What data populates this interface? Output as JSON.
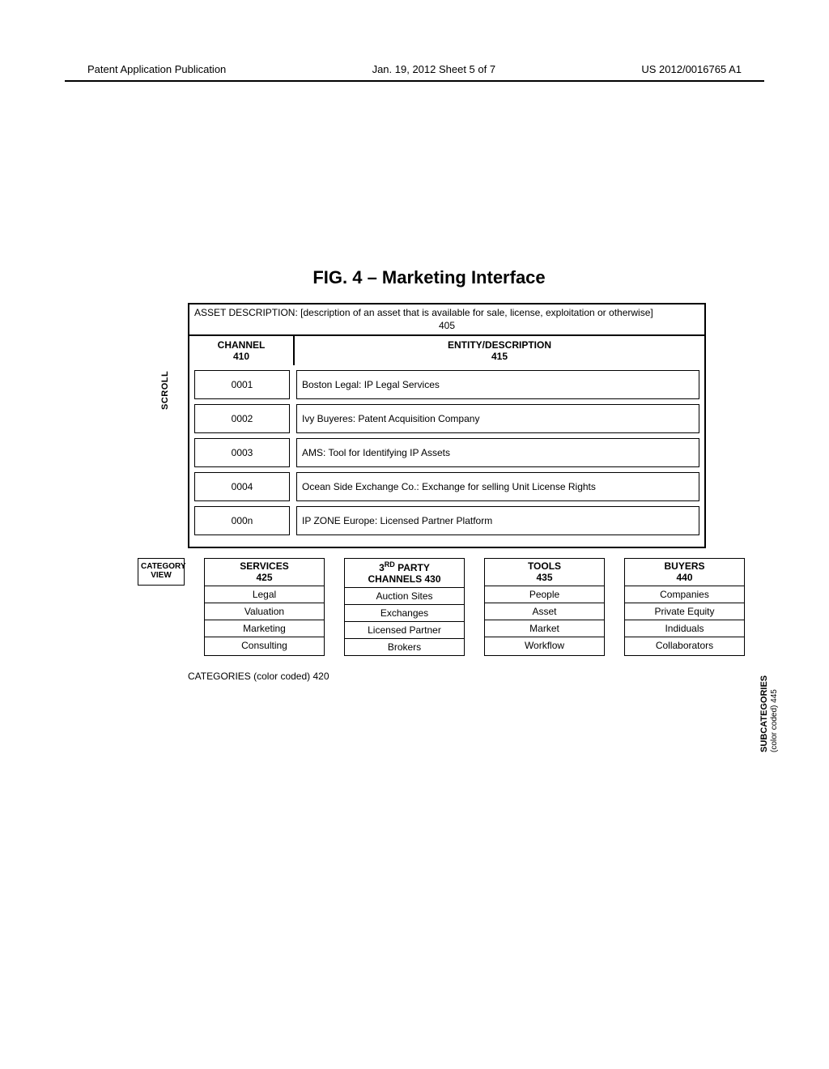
{
  "header": {
    "left": "Patent Application Publication",
    "center": "Jan. 19, 2012  Sheet 5 of 7",
    "right": "US 2012/0016765 A1"
  },
  "figure": {
    "title": "FIG. 4 – Marketing Interface",
    "asset_description": "ASSET DESCRIPTION: [description of an asset that is available for sale, license, exploitation or otherwise]",
    "asset_ref": "405",
    "channel_header": {
      "channel": "CHANNEL",
      "channel_ref": "410",
      "entity": "ENTITY/DESCRIPTION",
      "entity_ref": "415"
    },
    "rows": [
      {
        "channel": "0001",
        "entity": "Boston Legal: IP Legal Services"
      },
      {
        "channel": "0002",
        "entity": "Ivy Buyeres: Patent Acquisition Company"
      },
      {
        "channel": "0003",
        "entity": "AMS: Tool for Identifying IP Assets"
      },
      {
        "channel": "0004",
        "entity": "Ocean Side Exchange Co.: Exchange for selling Unit License Rights"
      },
      {
        "channel": "000n",
        "entity": "IP ZONE Europe: Licensed Partner Platform"
      }
    ],
    "scroll_label": "SCROLL",
    "category_view_label": "CATEGORY VIEW",
    "columns": [
      {
        "head": "SERVICES",
        "ref": "425",
        "cells": [
          "Legal",
          "Valuation",
          "Marketing",
          "Consulting"
        ]
      },
      {
        "head": "3RD PARTY CHANNELS",
        "ref": "430",
        "cells": [
          "Auction Sites",
          "Exchanges",
          "Licensed Partner",
          "Brokers"
        ]
      },
      {
        "head": "TOOLS",
        "ref": "435",
        "cells": [
          "People",
          "Asset",
          "Market",
          "Workflow"
        ]
      },
      {
        "head": "BUYERS",
        "ref": "440",
        "cells": [
          "Companies",
          "Private Equity",
          "Indiduals",
          "Collaborators"
        ]
      }
    ],
    "subcategories_label": "SUBCATEGORIES",
    "subcategories_sub": "(color coded) 445",
    "categories_footnote": "CATEGORIES (color coded) 420"
  }
}
